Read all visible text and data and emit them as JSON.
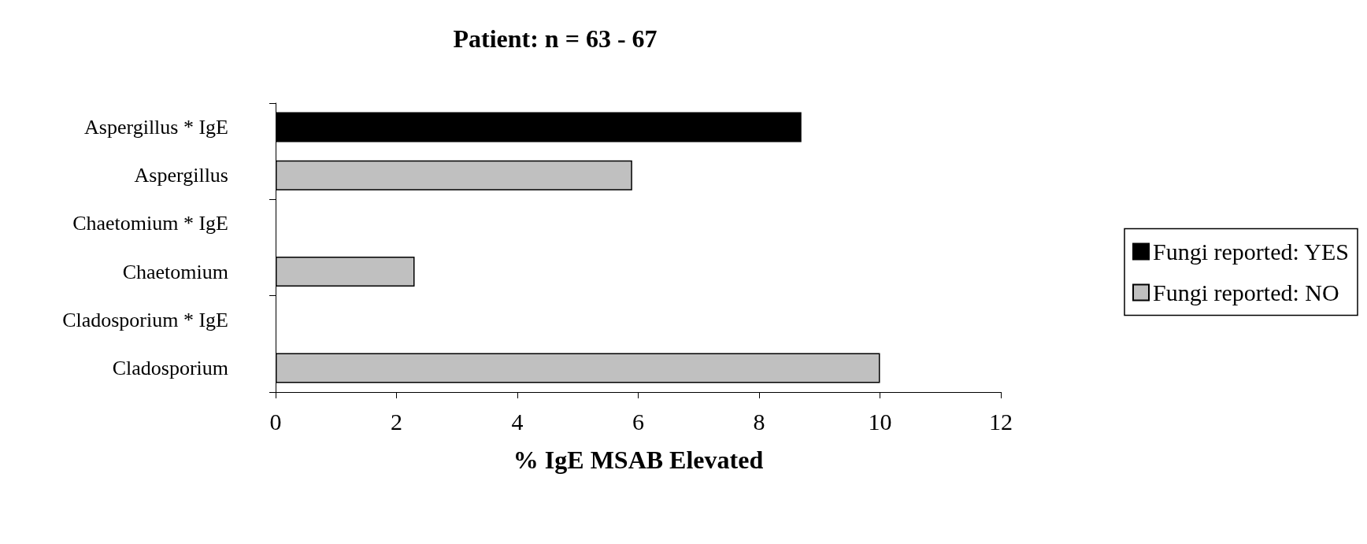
{
  "chart_data": {
    "type": "bar",
    "orientation": "horizontal",
    "title": "Patient: n = 63 - 67",
    "xlabel": "% IgE MSAB Elevated",
    "categories": [
      "Aspergillus * IgE",
      "Aspergillus",
      "Chaetomium * IgE",
      "Chaetomium",
      "Cladosporium * IgE",
      "Cladosporium"
    ],
    "series": [
      {
        "name": "Fungi reported: YES",
        "color": "#000000",
        "values": [
          8.7,
          null,
          null,
          null,
          null,
          null
        ]
      },
      {
        "name": "Fungi reported: NO",
        "color": "#c0c0c0",
        "values": [
          null,
          5.9,
          null,
          2.3,
          null,
          10.0
        ]
      }
    ],
    "xlim": [
      0,
      12
    ],
    "xticks": [
      0,
      2,
      4,
      6,
      8,
      10,
      12
    ],
    "grid": false,
    "legend": "right"
  }
}
